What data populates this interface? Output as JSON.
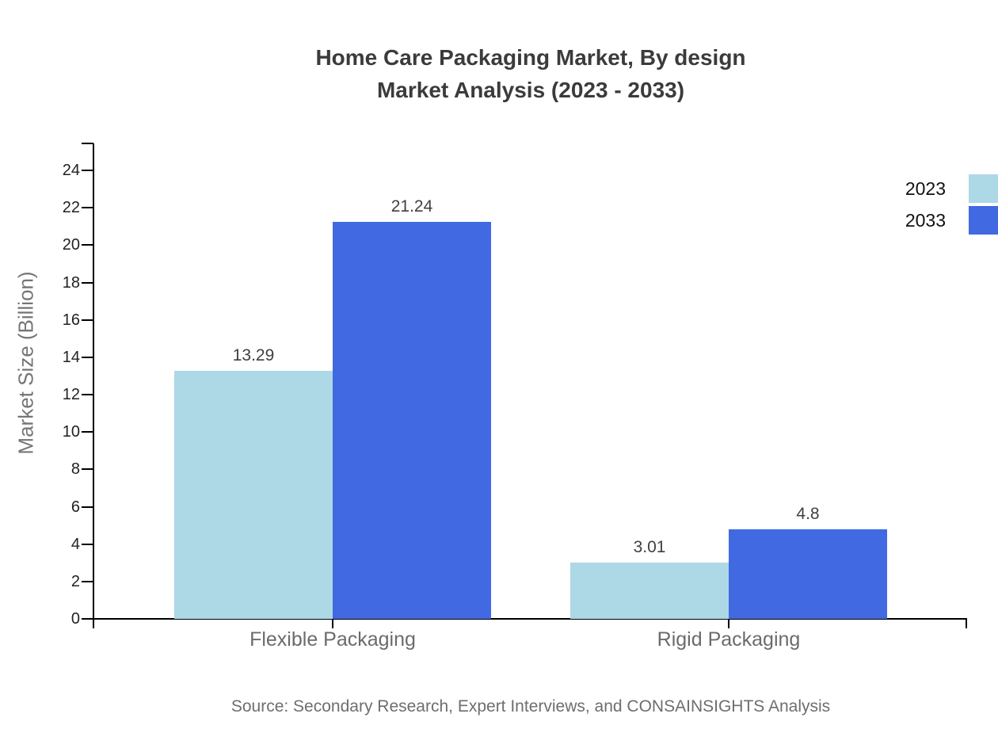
{
  "chart_data": {
    "type": "bar",
    "title": "Home Care Packaging Market, By design",
    "subtitle": "Market Analysis (2023 - 2033)",
    "categories": [
      "Flexible Packaging",
      "Rigid Packaging"
    ],
    "series": [
      {
        "name": "2023",
        "color": "#ADD8E6",
        "values": [
          13.29,
          3.01
        ]
      },
      {
        "name": "2033",
        "color": "#4169E1",
        "values": [
          21.24,
          4.8
        ]
      }
    ],
    "data_labels": [
      [
        "13.29",
        "3.01"
      ],
      [
        "21.24",
        "4.8"
      ]
    ],
    "xlabel": "",
    "ylabel": "Market Size (Billion)",
    "ylim": [
      0,
      25.4
    ],
    "yticks": [
      0,
      2,
      4,
      6,
      8,
      10,
      12,
      14,
      16,
      18,
      20,
      22,
      24
    ],
    "grid": false,
    "legend_position": "top-right",
    "source": "Source: Secondary Research, Expert Interviews, and CONSAINSIGHTS Analysis"
  },
  "colors": {
    "series_2023": "#ADD8E6",
    "series_2033": "#4169E1",
    "axis": "#000000",
    "title_text": "#3b3b3b",
    "tick_text": "#222222",
    "value_text": "#3f3f3f",
    "category_text": "#6b6b6b",
    "muted_text": "#757575"
  }
}
